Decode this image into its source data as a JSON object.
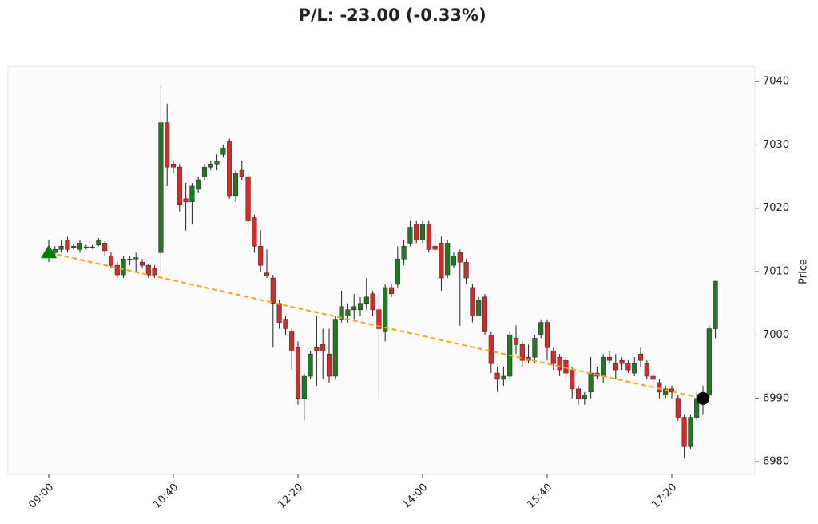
{
  "chart_data": {
    "type": "candlestick",
    "title": "P/L: -23.00 (-0.33%)",
    "y_label": "Price",
    "categories": [
      "09:00",
      "09:05",
      "09:10",
      "09:15",
      "09:20",
      "09:25",
      "09:30",
      "09:35",
      "09:40",
      "09:45",
      "09:50",
      "09:55",
      "10:00",
      "10:05",
      "10:10",
      "10:15",
      "10:20",
      "10:25",
      "10:30",
      "10:35",
      "10:40",
      "10:45",
      "10:50",
      "10:55",
      "11:00",
      "11:05",
      "11:10",
      "11:15",
      "11:20",
      "11:25",
      "11:30",
      "11:35",
      "11:40",
      "11:45",
      "11:50",
      "11:55",
      "12:00",
      "12:05",
      "12:10",
      "12:15",
      "12:20",
      "12:25",
      "12:30",
      "12:35",
      "12:40",
      "12:45",
      "12:50",
      "12:55",
      "13:00",
      "13:05",
      "13:10",
      "13:15",
      "13:20",
      "13:25",
      "13:30",
      "13:35",
      "13:40",
      "13:45",
      "13:50",
      "13:55",
      "14:00",
      "14:05",
      "14:10",
      "14:15",
      "14:20",
      "14:25",
      "14:30",
      "14:35",
      "14:40",
      "14:45",
      "14:50",
      "14:55",
      "15:00",
      "15:05",
      "15:10",
      "15:15",
      "15:20",
      "15:25",
      "15:30",
      "15:35",
      "15:40",
      "15:45",
      "15:50",
      "15:55",
      "16:00",
      "16:05",
      "16:10",
      "16:15",
      "16:20",
      "16:25",
      "16:30",
      "16:35",
      "16:40",
      "16:45",
      "16:50",
      "16:55",
      "17:00",
      "17:05",
      "17:10",
      "17:15",
      "17:20",
      "17:25",
      "17:30",
      "17:35",
      "17:40",
      "17:45",
      "17:50",
      "17:55"
    ],
    "ohlc": [
      [
        7012.5,
        7015,
        7011.5,
        7013
      ],
      [
        7013,
        7014,
        7012.5,
        7013.5
      ],
      [
        7013.5,
        7015,
        7013,
        7014
      ],
      [
        7015,
        7015.5,
        7013,
        7013.5
      ],
      [
        7013.8,
        7014.3,
        7013.5,
        7014
      ],
      [
        7013.5,
        7015,
        7013,
        7014.5
      ],
      [
        7013.8,
        7014.2,
        7013.5,
        7013.9
      ],
      [
        7013.9,
        7014.2,
        7013.6,
        7013.8
      ],
      [
        7014.2,
        7015.3,
        7014,
        7015
      ],
      [
        7014.5,
        7014.8,
        7012.5,
        7013.3
      ],
      [
        7012.5,
        7013,
        7010.5,
        7011
      ],
      [
        7011,
        7011.5,
        7009,
        7009.5
      ],
      [
        7009.5,
        7012.5,
        7009,
        7012
      ],
      [
        7011.8,
        7012.5,
        7011,
        7012
      ],
      [
        7012,
        7013,
        7010,
        7012.2
      ],
      [
        7011.5,
        7012,
        7010.5,
        7011
      ],
      [
        7011,
        7011.3,
        7009,
        7009.5
      ],
      [
        7010.5,
        7011,
        7009,
        7009.5
      ],
      [
        7013,
        7039.5,
        7010,
        7033.5
      ],
      [
        7033.5,
        7036.5,
        7023.5,
        7026.5
      ],
      [
        7027,
        7027.5,
        7025.5,
        7026.5
      ],
      [
        7026.5,
        7027,
        7019.5,
        7020.5
      ],
      [
        7021.5,
        7024,
        7016.5,
        7021
      ],
      [
        7021,
        7024,
        7017.5,
        7023.5
      ],
      [
        7023,
        7025,
        7022.5,
        7024.5
      ],
      [
        7025,
        7027,
        7024.5,
        7026.5
      ],
      [
        7026.5,
        7027.5,
        7026,
        7027
      ],
      [
        7027,
        7028.5,
        7026,
        7027.5
      ],
      [
        7028.5,
        7030,
        7028,
        7029.5
      ],
      [
        7030.5,
        7031,
        7021.5,
        7022
      ],
      [
        7022,
        7026,
        7021,
        7025.5
      ],
      [
        7026,
        7027.5,
        7024.5,
        7025
      ],
      [
        7025,
        7025.5,
        7016.5,
        7018
      ],
      [
        7018.5,
        7019,
        7013,
        7014
      ],
      [
        7014,
        7016.5,
        7010,
        7011
      ],
      [
        7009.8,
        7013.5,
        7009,
        7009.3
      ],
      [
        7009,
        7009.5,
        6998,
        7005
      ],
      [
        7005,
        7005.5,
        7001,
        7002
      ],
      [
        7002.5,
        7003,
        7000,
        7001
      ],
      [
        7000.5,
        7001,
        6994.5,
        6997.5
      ],
      [
        6998,
        6999,
        6989,
        6990
      ],
      [
        6990,
        6994,
        6986.5,
        6993.5
      ],
      [
        6993.5,
        6997.5,
        6993,
        6997
      ],
      [
        6998,
        7003,
        6992,
        6997.5
      ],
      [
        6998.5,
        7001,
        6993,
        6997.5
      ],
      [
        6997,
        7001,
        6992.5,
        6993.5
      ],
      [
        6993.5,
        7003,
        6993,
        7002.5
      ],
      [
        7002.5,
        7007,
        7002,
        7004.5
      ],
      [
        7003,
        7005,
        7002,
        7004
      ],
      [
        7004,
        7006.5,
        7002.5,
        7004.5
      ],
      [
        7004,
        7006,
        7003,
        7005
      ],
      [
        7005,
        7009,
        7004,
        7006
      ],
      [
        7006.5,
        7007,
        7003,
        7004
      ],
      [
        7004,
        7007,
        6990,
        7001
      ],
      [
        7000.5,
        7008,
        6999,
        7007.5
      ],
      [
        7007.5,
        7008,
        7006,
        7006.5
      ],
      [
        7008,
        7014,
        7007.5,
        7012
      ],
      [
        7012,
        7015,
        7011,
        7014
      ],
      [
        7014.5,
        7018,
        7014,
        7017
      ],
      [
        7017.5,
        7018,
        7014.5,
        7015
      ],
      [
        7015,
        7018,
        7014.5,
        7017.5
      ],
      [
        7017.5,
        7018,
        7013,
        7013.5
      ],
      [
        7014,
        7016,
        7013,
        7013.5
      ],
      [
        7014.5,
        7015.5,
        7007,
        7009
      ],
      [
        7009.5,
        7015,
        7009,
        7014.5
      ],
      [
        7011,
        7013,
        7010.5,
        7012.5
      ],
      [
        7013,
        7013.5,
        7001.5,
        7011.5
      ],
      [
        7011.5,
        7012,
        7008,
        7009
      ],
      [
        7007.5,
        7008,
        7002,
        7003
      ],
      [
        7003,
        7006,
        7003,
        7005.5
      ],
      [
        7006,
        7006.5,
        7000,
        7000.5
      ],
      [
        7000,
        7000.5,
        6994,
        6995.5
      ],
      [
        6994,
        6995,
        6991,
        6993
      ],
      [
        6993,
        6995,
        6992,
        6993.5
      ],
      [
        6993.5,
        7000.5,
        6993,
        7000
      ],
      [
        6999.5,
        7001.5,
        6997,
        6998.5
      ],
      [
        6998.5,
        6999,
        6995,
        6996
      ],
      [
        6996.5,
        6998.5,
        6995.5,
        6996
      ],
      [
        6996.5,
        7000,
        6995.5,
        6999.5
      ],
      [
        7000,
        7002.5,
        6999.5,
        7002
      ],
      [
        7002,
        7002.5,
        6996,
        6998
      ],
      [
        6997.5,
        6998,
        6994.5,
        6995.5
      ],
      [
        6996.5,
        6997,
        6993.5,
        6994.5
      ],
      [
        6996,
        6996.5,
        6993,
        6994
      ],
      [
        6994.5,
        6995,
        6990,
        6991.5
      ],
      [
        6991.5,
        6992,
        6989,
        6990
      ],
      [
        6990,
        6991,
        6989,
        6990.5
      ],
      [
        6991,
        6996.5,
        6990,
        6994
      ],
      [
        6994,
        6995,
        6993,
        6993.5
      ],
      [
        6993.5,
        6997,
        6992.5,
        6996.5
      ],
      [
        6996.5,
        6997.5,
        6995.5,
        6996
      ],
      [
        6995.5,
        6997,
        6993,
        6994.5
      ],
      [
        6996,
        6996.5,
        6994.5,
        6995.5
      ],
      [
        6995.5,
        6996,
        6994,
        6994.5
      ],
      [
        6994,
        6996.5,
        6993.5,
        6995.5
      ],
      [
        6997,
        6998,
        6995,
        6996
      ],
      [
        6995.5,
        6996,
        6993,
        6993.5
      ],
      [
        6993.5,
        6994,
        6992.5,
        6993
      ],
      [
        6992.5,
        6993,
        6990,
        6991
      ],
      [
        6990.5,
        6992,
        6990,
        6991.5
      ],
      [
        6991.5,
        6992,
        6990,
        6991
      ],
      [
        6990,
        6990.5,
        6986.5,
        6987
      ],
      [
        6987,
        6987.5,
        6980.5,
        6982.5
      ],
      [
        6982.5,
        6987.5,
        6982,
        6987
      ],
      [
        6987,
        6991,
        6986.5,
        6990
      ],
      [
        6990,
        6992,
        6987.5,
        6990.5
      ],
      [
        6990.5,
        7001.5,
        6990,
        7001
      ],
      [
        7001,
        7008.5,
        6999.5,
        7008.5
      ]
    ],
    "up_color": "#1f7a1f",
    "down_color": "#d42a2a",
    "entry": {
      "x": "09:00",
      "price": 7013,
      "color": "#008000"
    },
    "exit": {
      "x": "17:45",
      "price": 6990,
      "color": "#000000"
    },
    "trade_line_color": "#ffa500",
    "ylim": [
      6978,
      7042.4
    ],
    "yticks": [
      6980,
      6990,
      7000,
      7010,
      7020,
      7030,
      7040
    ],
    "xticks": [
      "09:00",
      "10:40",
      "12:20",
      "14:00",
      "15:40",
      "17:20"
    ]
  }
}
